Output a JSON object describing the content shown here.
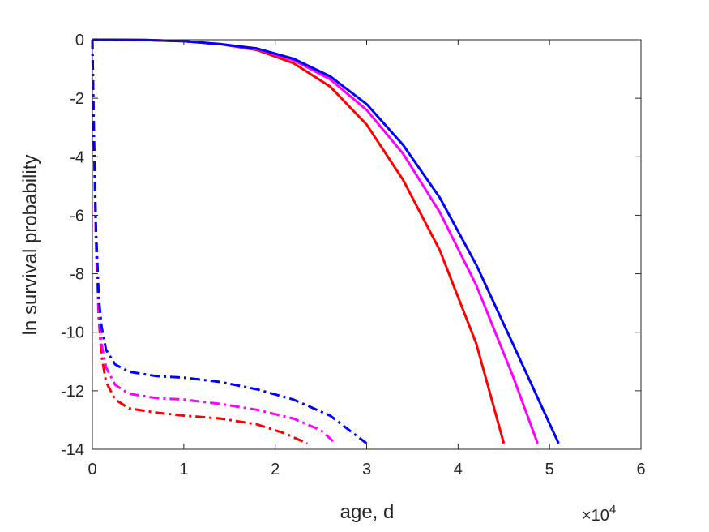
{
  "chart_data": {
    "type": "line",
    "xlabel": "age, d",
    "ylabel": "ln survival probability",
    "x_multiplier_label": "×10",
    "x_multiplier_exponent": "4",
    "xlim": [
      0,
      60000
    ],
    "ylim": [
      -14,
      0
    ],
    "x_ticks": [
      0,
      10000,
      20000,
      30000,
      40000,
      50000,
      60000
    ],
    "x_tick_labels": [
      "0",
      "1",
      "2",
      "3",
      "4",
      "5",
      "6"
    ],
    "y_ticks": [
      0,
      -2,
      -4,
      -6,
      -8,
      -10,
      -12,
      -14
    ],
    "y_tick_labels": [
      "0",
      "-2",
      "-4",
      "-6",
      "-8",
      "-10",
      "-12",
      "-14"
    ],
    "grid": false,
    "series": [
      {
        "color": "#ff0000",
        "style": "solid",
        "points": [
          [
            0,
            0
          ],
          [
            2000,
            0
          ],
          [
            6000,
            -0.01
          ],
          [
            10000,
            -0.05
          ],
          [
            14000,
            -0.15
          ],
          [
            18000,
            -0.35
          ],
          [
            22000,
            -0.8
          ],
          [
            26000,
            -1.6
          ],
          [
            30000,
            -2.9
          ],
          [
            34000,
            -4.8
          ],
          [
            38000,
            -7.2
          ],
          [
            42000,
            -10.4
          ],
          [
            45000,
            -13.8
          ]
        ]
      },
      {
        "color": "#ff00ff",
        "style": "solid",
        "points": [
          [
            0,
            0
          ],
          [
            2000,
            0
          ],
          [
            6000,
            -0.01
          ],
          [
            10000,
            -0.05
          ],
          [
            14000,
            -0.15
          ],
          [
            18000,
            -0.32
          ],
          [
            22000,
            -0.7
          ],
          [
            26000,
            -1.35
          ],
          [
            30000,
            -2.4
          ],
          [
            34000,
            -3.9
          ],
          [
            38000,
            -5.9
          ],
          [
            42000,
            -8.4
          ],
          [
            46000,
            -11.5
          ],
          [
            48700,
            -13.8
          ]
        ]
      },
      {
        "color": "#0000ff",
        "style": "solid",
        "points": [
          [
            0,
            0
          ],
          [
            2000,
            0
          ],
          [
            6000,
            -0.01
          ],
          [
            10000,
            -0.05
          ],
          [
            14000,
            -0.15
          ],
          [
            18000,
            -0.3
          ],
          [
            22000,
            -0.65
          ],
          [
            26000,
            -1.25
          ],
          [
            30000,
            -2.2
          ],
          [
            34000,
            -3.6
          ],
          [
            38000,
            -5.4
          ],
          [
            42000,
            -7.7
          ],
          [
            46000,
            -10.4
          ],
          [
            51000,
            -13.8
          ]
        ]
      },
      {
        "color": "#ff0000",
        "style": "dashdot",
        "points": [
          [
            0,
            0
          ],
          [
            150,
            -3
          ],
          [
            400,
            -7
          ],
          [
            700,
            -9.5
          ],
          [
            1000,
            -10.8
          ],
          [
            1500,
            -11.7
          ],
          [
            2500,
            -12.3
          ],
          [
            4000,
            -12.6
          ],
          [
            7000,
            -12.75
          ],
          [
            10000,
            -12.85
          ],
          [
            14000,
            -12.95
          ],
          [
            18000,
            -13.15
          ],
          [
            21000,
            -13.45
          ],
          [
            23500,
            -13.8
          ]
        ]
      },
      {
        "color": "#ff00ff",
        "style": "dashdot",
        "points": [
          [
            0,
            0
          ],
          [
            150,
            -3
          ],
          [
            400,
            -7
          ],
          [
            700,
            -9.2
          ],
          [
            1000,
            -10.4
          ],
          [
            1500,
            -11.2
          ],
          [
            2500,
            -11.8
          ],
          [
            4000,
            -12.1
          ],
          [
            7000,
            -12.25
          ],
          [
            10000,
            -12.3
          ],
          [
            14000,
            -12.45
          ],
          [
            18000,
            -12.65
          ],
          [
            22000,
            -12.95
          ],
          [
            25000,
            -13.35
          ],
          [
            26600,
            -13.8
          ]
        ]
      },
      {
        "color": "#0000ff",
        "style": "dashdot",
        "points": [
          [
            0,
            0
          ],
          [
            150,
            -3
          ],
          [
            400,
            -6.5
          ],
          [
            700,
            -8.8
          ],
          [
            1000,
            -9.8
          ],
          [
            1500,
            -10.6
          ],
          [
            2500,
            -11.1
          ],
          [
            4000,
            -11.35
          ],
          [
            7000,
            -11.5
          ],
          [
            10000,
            -11.55
          ],
          [
            14000,
            -11.7
          ],
          [
            18000,
            -11.95
          ],
          [
            22000,
            -12.3
          ],
          [
            26000,
            -12.85
          ],
          [
            30000,
            -13.8
          ]
        ]
      }
    ]
  }
}
